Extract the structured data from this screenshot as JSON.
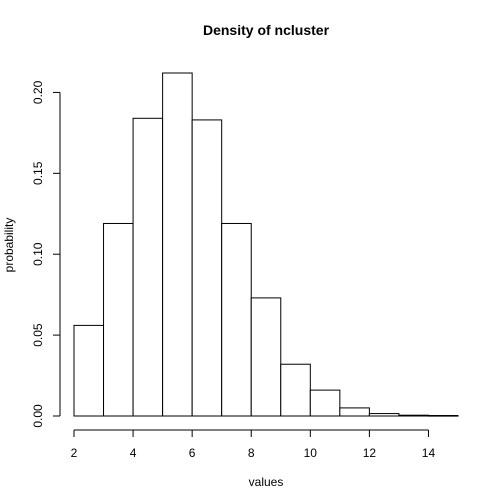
{
  "chart_data": {
    "type": "bar",
    "title": "Density of ncluster",
    "xlabel": "values",
    "ylabel": "probability",
    "bins": [
      {
        "start": 2,
        "end": 3,
        "value": 0.056
      },
      {
        "start": 3,
        "end": 4,
        "value": 0.119
      },
      {
        "start": 4,
        "end": 5,
        "value": 0.184
      },
      {
        "start": 5,
        "end": 6,
        "value": 0.212
      },
      {
        "start": 6,
        "end": 7,
        "value": 0.183
      },
      {
        "start": 7,
        "end": 8,
        "value": 0.119
      },
      {
        "start": 8,
        "end": 9,
        "value": 0.073
      },
      {
        "start": 9,
        "end": 10,
        "value": 0.032
      },
      {
        "start": 10,
        "end": 11,
        "value": 0.016
      },
      {
        "start": 11,
        "end": 12,
        "value": 0.005
      },
      {
        "start": 12,
        "end": 13,
        "value": 0.0015
      },
      {
        "start": 13,
        "end": 14,
        "value": 0.0005
      },
      {
        "start": 14,
        "end": 15,
        "value": 0.0003
      }
    ],
    "xlim": [
      2,
      15
    ],
    "ylim": [
      0,
      0.212
    ],
    "x_ticks": [
      2,
      4,
      6,
      8,
      10,
      12,
      14
    ],
    "x_tick_labels": [
      "2",
      "4",
      "6",
      "8",
      "10",
      "12",
      "14"
    ],
    "y_ticks": [
      0,
      0.05,
      0.1,
      0.15,
      0.2
    ],
    "y_tick_labels": [
      "0.00",
      "0.05",
      "0.10",
      "0.15",
      "0.20"
    ],
    "grid": false,
    "colors": {
      "bar_fill": "#ffffff",
      "bar_stroke": "#000000",
      "axis": "#000000"
    }
  }
}
